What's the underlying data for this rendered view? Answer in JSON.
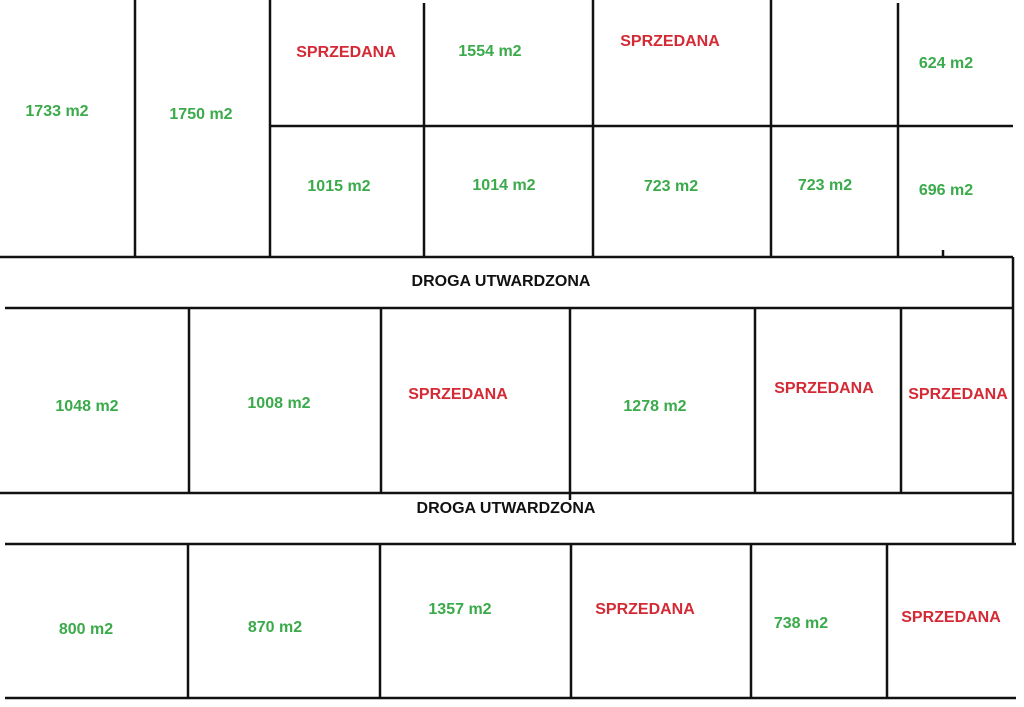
{
  "blocks": [
    {
      "lots": [
        "1733 m2",
        "1750 m2",
        "SPRZEDANA",
        "1554 m2",
        "SPRZEDANA",
        "624 m2",
        "1015 m2",
        "1014 m2",
        "723 m2",
        "723 m2",
        "696 m2"
      ]
    },
    {
      "lots": [
        "1048 m2",
        "1008 m2",
        "SPRZEDANA",
        "1278 m2",
        "SPRZEDANA",
        "SPRZEDANA"
      ]
    },
    {
      "lots": [
        "800 m2",
        "870 m2",
        "1357 m2",
        "SPRZEDANA",
        "738 m2",
        "SPRZEDANA"
      ]
    }
  ],
  "roads": [
    "DROGA UTWARDZONA",
    "DROGA UTWARDZONA"
  ]
}
